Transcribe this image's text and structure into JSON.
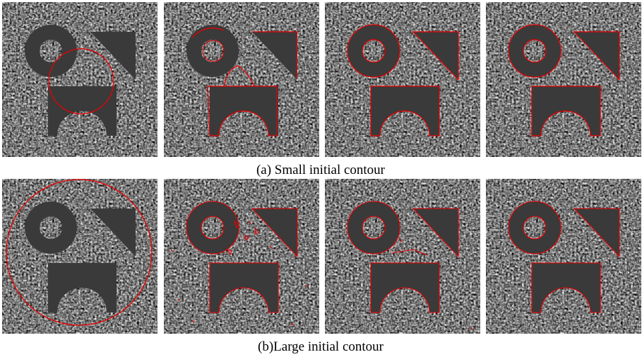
{
  "figure": {
    "captions": [
      "(a) Small initial contour",
      "(b)Large initial contour"
    ]
  }
}
